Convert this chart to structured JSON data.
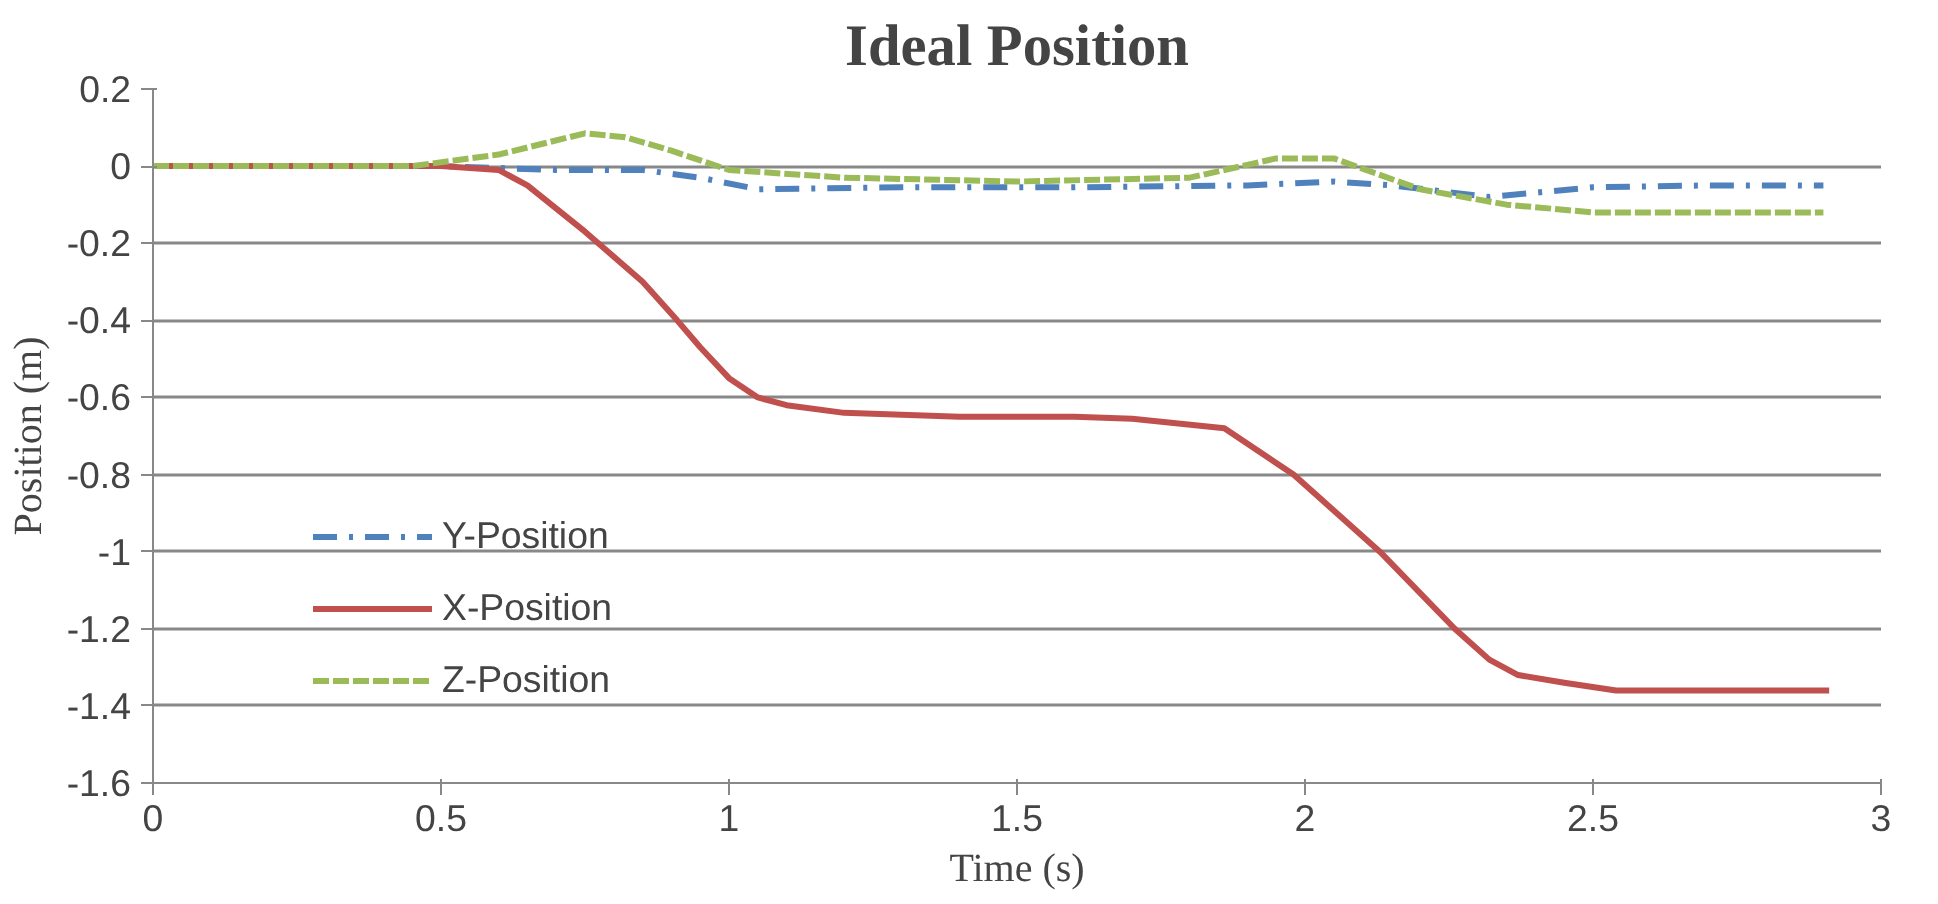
{
  "chart_data": {
    "type": "line",
    "title": "Ideal Position",
    "xlabel": "Time (s)",
    "ylabel": "Position (m)",
    "xlim": [
      0,
      3
    ],
    "xticks": [
      0,
      0.5,
      1,
      1.5,
      2,
      2.5,
      3
    ],
    "ylim": [
      -1.6,
      0.2
    ],
    "yticks": [
      -1.6,
      -1.4,
      -1.2,
      -1,
      -0.8,
      -0.6,
      -0.4,
      -0.2,
      0,
      0.2
    ],
    "grid": "y",
    "legend": "left",
    "series": [
      {
        "name": "Y-Position",
        "color": "#4f81bd",
        "line_style": "dashdot",
        "x": [
          0,
          0.5,
          0.7,
          0.85,
          0.95,
          1.05,
          1.3,
          1.6,
          1.9,
          2.05,
          2.15,
          2.32,
          2.5,
          2.7,
          2.9
        ],
        "values": [
          0,
          0,
          -0.01,
          -0.01,
          -0.03,
          -0.06,
          -0.055,
          -0.055,
          -0.05,
          -0.04,
          -0.05,
          -0.08,
          -0.055,
          -0.05,
          -0.05
        ]
      },
      {
        "name": "X-Position",
        "color": "#c0504d",
        "line_style": "solid",
        "x": [
          0,
          0.5,
          0.6,
          0.65,
          0.75,
          0.85,
          0.91,
          0.95,
          1.0,
          1.05,
          1.1,
          1.2,
          1.4,
          1.6,
          1.7,
          1.86,
          1.98,
          2.13,
          2.26,
          2.32,
          2.37,
          2.45,
          2.54,
          2.7,
          2.91
        ],
        "values": [
          0,
          0,
          -0.01,
          -0.05,
          -0.17,
          -0.3,
          -0.4,
          -0.47,
          -0.55,
          -0.6,
          -0.62,
          -0.64,
          -0.65,
          -0.65,
          -0.655,
          -0.68,
          -0.8,
          -1.0,
          -1.2,
          -1.28,
          -1.32,
          -1.34,
          -1.36,
          -1.36,
          -1.36
        ]
      },
      {
        "name": "Z-Position",
        "color": "#9bbb59",
        "line_style": "dashed",
        "x": [
          0,
          0.45,
          0.6,
          0.75,
          0.82,
          0.9,
          1.0,
          1.2,
          1.5,
          1.8,
          1.95,
          2.05,
          2.2,
          2.35,
          2.5,
          2.7,
          2.9
        ],
        "values": [
          0,
          0,
          0.03,
          0.085,
          0.075,
          0.04,
          -0.01,
          -0.03,
          -0.04,
          -0.03,
          0.02,
          0.02,
          -0.06,
          -0.1,
          -0.12,
          -0.12,
          -0.12
        ]
      }
    ]
  }
}
